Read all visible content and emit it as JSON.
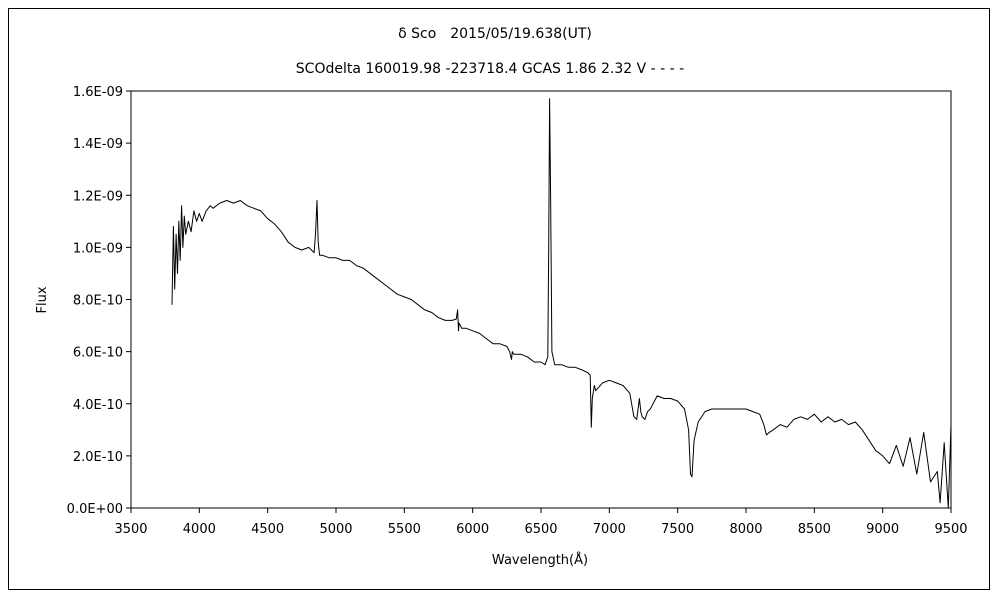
{
  "chart_data": {
    "type": "line",
    "title": "δ Sco　2015/05/19.638(UT)",
    "subtitle": "SCOdelta 160019.98 -223718.4 GCAS 1.86 2.32 V - - - -",
    "xlabel": "Wavelength(Å)",
    "ylabel": "Flux",
    "xlim": [
      3500,
      9500
    ],
    "ylim": [
      0,
      1.6e-09
    ],
    "xticks": [
      "3500",
      "4000",
      "4500",
      "5000",
      "5500",
      "6000",
      "6500",
      "7000",
      "7500",
      "8000",
      "8500",
      "9000",
      "9500"
    ],
    "yticks": [
      "0.0E+00",
      "2.0E-10",
      "4.0E-10",
      "6.0E-10",
      "8.0E-10",
      "1.0E-09",
      "1.2E-09",
      "1.4E-09",
      "1.6E-09"
    ],
    "grid": false,
    "legend": "none",
    "series": [
      {
        "color": "#000000",
        "x": [
          3800,
          3810,
          3820,
          3830,
          3840,
          3850,
          3860,
          3870,
          3880,
          3890,
          3900,
          3920,
          3940,
          3960,
          3980,
          4000,
          4020,
          4050,
          4080,
          4100,
          4150,
          4200,
          4250,
          4300,
          4350,
          4400,
          4450,
          4500,
          4550,
          4600,
          4650,
          4700,
          4750,
          4800,
          4840,
          4850,
          4861,
          4870,
          4880,
          4900,
          4950,
          5000,
          5050,
          5100,
          5150,
          5200,
          5300,
          5400,
          5450,
          5500,
          5550,
          5600,
          5650,
          5700,
          5750,
          5800,
          5850,
          5880,
          5890,
          5896,
          5900,
          5920,
          5950,
          6000,
          6050,
          6100,
          6150,
          6200,
          6250,
          6270,
          6284,
          6290,
          6300,
          6350,
          6400,
          6450,
          6500,
          6530,
          6550,
          6556,
          6563,
          6570,
          6580,
          6600,
          6650,
          6700,
          6750,
          6800,
          6840,
          6860,
          6868,
          6875,
          6890,
          6900,
          6950,
          7000,
          7050,
          7100,
          7150,
          7180,
          7200,
          7220,
          7230,
          7240,
          7260,
          7280,
          7300,
          7350,
          7400,
          7450,
          7500,
          7550,
          7580,
          7594,
          7605,
          7620,
          7650,
          7700,
          7750,
          7800,
          7850,
          7900,
          7950,
          8000,
          8050,
          8100,
          8130,
          8150,
          8170,
          8200,
          8250,
          8300,
          8350,
          8400,
          8450,
          8500,
          8550,
          8600,
          8650,
          8700,
          8750,
          8800,
          8850,
          8900,
          8950,
          9000,
          9050,
          9100,
          9150,
          9200,
          9250,
          9300,
          9350,
          9400,
          9420,
          9450,
          9480,
          9500
        ],
        "y": [
          7.8e-10,
          1.08e-09,
          8.4e-10,
          1.05e-09,
          9e-10,
          1.1e-09,
          9.5e-10,
          1.16e-09,
          1e-09,
          1.12e-09,
          1.05e-09,
          1.1e-09,
          1.06e-09,
          1.14e-09,
          1.1e-09,
          1.13e-09,
          1.1e-09,
          1.14e-09,
          1.16e-09,
          1.15e-09,
          1.17e-09,
          1.18e-09,
          1.17e-09,
          1.18e-09,
          1.16e-09,
          1.15e-09,
          1.14e-09,
          1.11e-09,
          1.09e-09,
          1.06e-09,
          1.02e-09,
          1e-09,
          9.9e-10,
          1e-09,
          9.8e-10,
          1.05e-09,
          1.18e-09,
          1.02e-09,
          9.7e-10,
          9.7e-10,
          9.6e-10,
          9.6e-10,
          9.5e-10,
          9.5e-10,
          9.3e-10,
          9.2e-10,
          8.8e-10,
          8.4e-10,
          8.2e-10,
          8.1e-10,
          8e-10,
          7.8e-10,
          7.6e-10,
          7.5e-10,
          7.3e-10,
          7.2e-10,
          7.2e-10,
          7.25e-10,
          7.6e-10,
          6.8e-10,
          7.1e-10,
          6.9e-10,
          6.9e-10,
          6.8e-10,
          6.7e-10,
          6.5e-10,
          6.3e-10,
          6.3e-10,
          6.2e-10,
          6e-10,
          5.7e-10,
          6e-10,
          5.9e-10,
          5.9e-10,
          5.8e-10,
          5.6e-10,
          5.6e-10,
          5.5e-10,
          5.8e-10,
          1e-09,
          1.57e-09,
          1.2e-09,
          6e-10,
          5.5e-10,
          5.5e-10,
          5.4e-10,
          5.4e-10,
          5.3e-10,
          5.2e-10,
          5.1e-10,
          3.1e-10,
          4.2e-10,
          4.7e-10,
          4.5e-10,
          4.8e-10,
          4.9e-10,
          4.8e-10,
          4.7e-10,
          4.4e-10,
          3.5e-10,
          3.4e-10,
          4.2e-10,
          3.7e-10,
          3.5e-10,
          3.4e-10,
          3.7e-10,
          3.8e-10,
          4.3e-10,
          4.2e-10,
          4.2e-10,
          4.1e-10,
          3.8e-10,
          3e-10,
          1.3e-10,
          1.2e-10,
          2.6e-10,
          3.3e-10,
          3.7e-10,
          3.8e-10,
          3.8e-10,
          3.8e-10,
          3.8e-10,
          3.8e-10,
          3.8e-10,
          3.7e-10,
          3.6e-10,
          3.2e-10,
          2.8e-10,
          2.9e-10,
          3e-10,
          3.2e-10,
          3.1e-10,
          3.4e-10,
          3.5e-10,
          3.4e-10,
          3.6e-10,
          3.3e-10,
          3.5e-10,
          3.3e-10,
          3.4e-10,
          3.2e-10,
          3.3e-10,
          3e-10,
          2.6e-10,
          2.2e-10,
          2e-10,
          1.7e-10,
          2.4e-10,
          1.6e-10,
          2.7e-10,
          1.3e-10,
          2.9e-10,
          1e-10,
          1.4e-10,
          2e-11,
          2.5e-10,
          0,
          3.2e-10
        ]
      }
    ]
  }
}
